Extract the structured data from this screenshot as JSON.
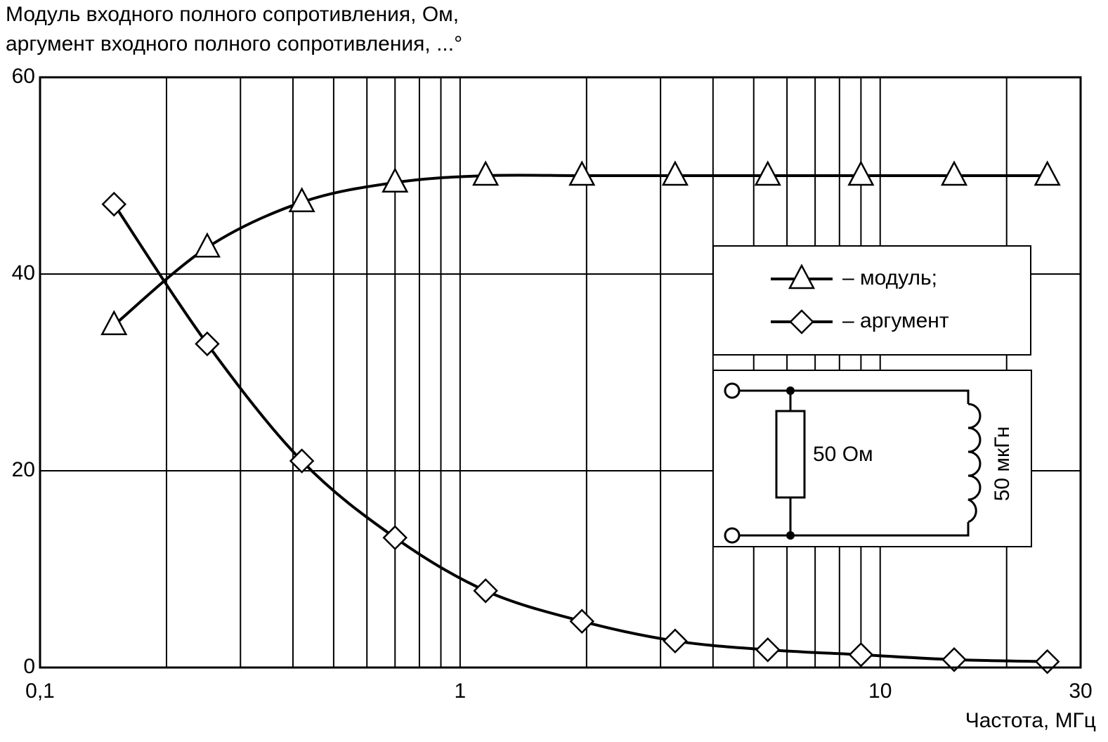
{
  "chart_data": {
    "type": "line",
    "title_lines": [
      "Модуль входного полного сопротивления, Ом,",
      "аргумент входного полного сопротивления, ...°"
    ],
    "x_label": "Частота, МГц",
    "x": [
      0.15,
      0.25,
      0.42,
      0.7,
      1.15,
      1.95,
      3.25,
      5.4,
      9,
      15,
      25
    ],
    "series": [
      {
        "name": "– модуль;",
        "color": "#000000",
        "marker": "triangle",
        "values": [
          34.8,
          42.7,
          47.3,
          49.3,
          50,
          50,
          50,
          50,
          50,
          50,
          50
        ]
      },
      {
        "name": "– аргумент",
        "color": "#000000",
        "marker": "diamond",
        "values": [
          47.1,
          32.9,
          21,
          13.2,
          7.8,
          4.7,
          2.7,
          1.8,
          1.3,
          0.8,
          0.6
        ]
      }
    ],
    "xscale": "log",
    "xlim": [
      0.1,
      30
    ],
    "xticks": [
      {
        "value": 0.1,
        "label": "0,1"
      },
      1,
      10,
      30
    ],
    "x_minor_grid": [
      0.2,
      0.3,
      0.4,
      0.5,
      0.6,
      0.7,
      0.8,
      0.9,
      2,
      3,
      4,
      5,
      6,
      7,
      8,
      9,
      20
    ],
    "ylim": [
      0,
      60
    ],
    "yticks": [
      0,
      20,
      40,
      60
    ],
    "grid": true,
    "legend": "right",
    "inset": {
      "resistor_label": "50 Ом",
      "inductor_label": "50 мкГн"
    }
  }
}
